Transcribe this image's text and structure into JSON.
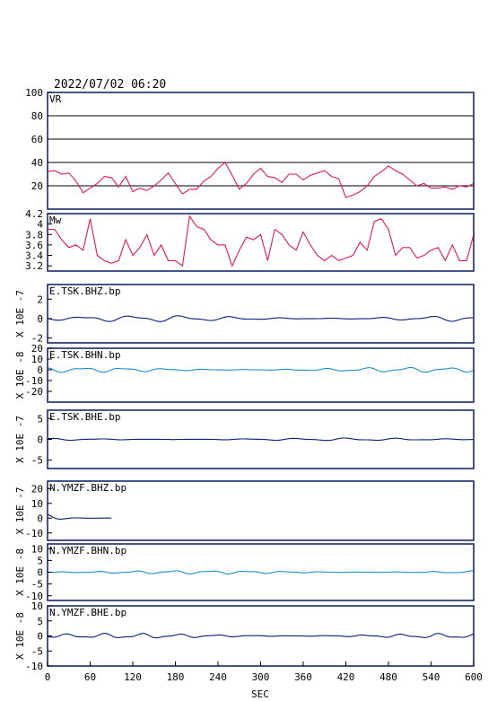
{
  "header": {
    "datetime": "2022/07/02 06:20"
  },
  "chart_data": {
    "type": "line",
    "x_axis": {
      "label": "SEC",
      "range": [
        0,
        600
      ],
      "ticks": [
        0,
        60,
        120,
        180,
        240,
        300,
        360,
        420,
        480,
        540,
        600
      ]
    },
    "panels": [
      {
        "id": "vr",
        "title": "VR",
        "color": "#e8194a",
        "ylim": [
          0,
          100
        ],
        "yticks": [
          20,
          40,
          60,
          80,
          100
        ],
        "grid": true,
        "ylabel": "",
        "x": [
          0,
          10,
          20,
          30,
          40,
          50,
          60,
          70,
          80,
          90,
          100,
          110,
          120,
          130,
          140,
          150,
          160,
          170,
          180,
          190,
          200,
          210,
          220,
          230,
          240,
          250,
          260,
          270,
          280,
          290,
          300,
          310,
          320,
          330,
          340,
          350,
          360,
          370,
          380,
          390,
          400,
          410,
          420,
          430,
          440,
          450,
          460,
          470,
          480,
          490,
          500,
          510,
          520,
          530,
          540,
          550,
          560,
          570,
          580,
          590,
          600
        ],
        "y": [
          32,
          33,
          30,
          31,
          24,
          14,
          18,
          22,
          28,
          27,
          19,
          28,
          15,
          18,
          16,
          20,
          25,
          31,
          22,
          13,
          17,
          17,
          24,
          28,
          35,
          40,
          29,
          17,
          22,
          30,
          35,
          28,
          27,
          23,
          30,
          30,
          25,
          29,
          31,
          33,
          28,
          26,
          10,
          12,
          15,
          20,
          28,
          32,
          37,
          33,
          30,
          25,
          20,
          22,
          18,
          18,
          19,
          17,
          20,
          19,
          22
        ]
      },
      {
        "id": "mw",
        "title": "Mw",
        "color": "#e8194a",
        "ylim": [
          3.1,
          4.2
        ],
        "yticks": [
          3.2,
          3.4,
          3.6,
          3.8,
          4.0,
          4.2
        ],
        "grid": false,
        "ylabel": "",
        "x": [
          0,
          10,
          20,
          30,
          40,
          50,
          60,
          70,
          80,
          90,
          100,
          110,
          120,
          130,
          140,
          150,
          160,
          170,
          180,
          190,
          200,
          210,
          220,
          230,
          240,
          250,
          260,
          270,
          280,
          290,
          300,
          310,
          320,
          330,
          340,
          350,
          360,
          370,
          380,
          390,
          400,
          410,
          420,
          430,
          440,
          450,
          460,
          470,
          480,
          490,
          500,
          510,
          520,
          530,
          540,
          550,
          560,
          570,
          580,
          590,
          600
        ],
        "y": [
          3.9,
          3.9,
          3.7,
          3.55,
          3.6,
          3.5,
          4.1,
          3.4,
          3.3,
          3.25,
          3.3,
          3.7,
          3.4,
          3.55,
          3.8,
          3.4,
          3.6,
          3.3,
          3.3,
          3.2,
          4.15,
          3.95,
          3.9,
          3.7,
          3.6,
          3.6,
          3.2,
          3.5,
          3.75,
          3.7,
          3.8,
          3.3,
          3.9,
          3.8,
          3.6,
          3.5,
          3.85,
          3.6,
          3.4,
          3.3,
          3.4,
          3.3,
          3.35,
          3.4,
          3.65,
          3.5,
          4.05,
          4.1,
          3.9,
          3.4,
          3.55,
          3.55,
          3.35,
          3.4,
          3.5,
          3.55,
          3.3,
          3.6,
          3.3,
          3.3,
          3.8
        ]
      },
      {
        "id": "e-tsk-bhz",
        "title": "E.TSK.BHZ.bp",
        "color": "#0d1e7a",
        "ylim": [
          -2.5,
          3.5
        ],
        "yticks": [
          -2,
          0,
          2
        ],
        "ylabel": "X 10E -7",
        "trace": {
          "amplitude": 0.35,
          "freq": 0.09,
          "seed": 1
        }
      },
      {
        "id": "e-tsk-bhn",
        "title": "E.TSK.BHN.bp",
        "color": "#1c8fd0",
        "ylim": [
          -30,
          20
        ],
        "yticks": [
          -20,
          -10,
          0,
          10,
          20
        ],
        "ylabel": "X 10E -8",
        "trace": {
          "amplitude": 2.5,
          "freq": 0.11,
          "seed": 2
        }
      },
      {
        "id": "e-tsk-bhe",
        "title": "E.TSK.BHE.bp",
        "color": "#0d1e7a",
        "ylim": [
          -7,
          7
        ],
        "yticks": [
          -5,
          0,
          5
        ],
        "ylabel": "X 10E -7",
        "trace": {
          "amplitude": 0.35,
          "freq": 0.09,
          "seed": 3
        }
      },
      {
        "id": "n-ymzf-bhz",
        "title": "N.YMZF.BHZ.bp",
        "color": "#0d1e7a",
        "ylim": [
          -15,
          25
        ],
        "yticks": [
          -10,
          0,
          10,
          20
        ],
        "ylabel": "X 10E -7",
        "trace": {
          "amplitude": 0,
          "freq": 0,
          "seed": 4,
          "end_sec": 90,
          "start_value": 2.5
        }
      },
      {
        "id": "n-ymzf-bhn",
        "title": "N.YMZF.BHN.bp",
        "color": "#1c8fd0",
        "ylim": [
          -12,
          12
        ],
        "yticks": [
          -10,
          -5,
          0,
          5,
          10
        ],
        "ylabel": "X 10E -8",
        "trace": {
          "amplitude": 0.8,
          "freq": 0.12,
          "seed": 5
        }
      },
      {
        "id": "n-ymzf-bhe",
        "title": "N.YMZF.BHE.bp",
        "color": "#0d1e7a",
        "ylim": [
          -10,
          10
        ],
        "yticks": [
          -10,
          -5,
          0,
          5,
          10
        ],
        "ylabel": "X 10E -8",
        "trace": {
          "amplitude": 0.9,
          "freq": 0.12,
          "seed": 6
        }
      }
    ]
  }
}
